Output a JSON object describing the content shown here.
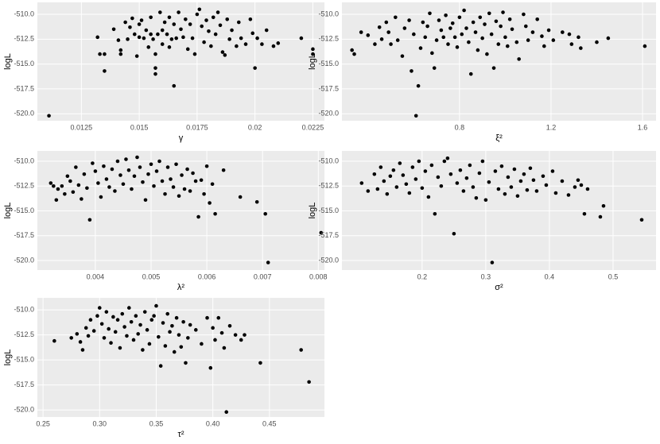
{
  "chart_data": [
    {
      "type": "scatter",
      "x_label": "γ",
      "y_label": "logL",
      "color": "#000000",
      "grid": true,
      "xlim": [
        0.0106,
        0.023
      ],
      "ylim": [
        -520.7,
        -508.8
      ],
      "xticks": [
        0.0125,
        0.015,
        0.0175,
        0.02,
        0.0225
      ],
      "xtick_labels_note": null,
      "yticks": [
        {
          "value": -510,
          "label": "-510.0"
        },
        -512.5,
        {
          "value": -515,
          "label": "-515.0"
        },
        -517.5,
        {
          "value": -520,
          "label": "-520.0"
        }
      ],
      "x": [
        0.0111,
        0.0132,
        0.0133,
        0.0135,
        0.0135,
        0.0139,
        0.0141,
        0.0142,
        0.0142,
        0.0144,
        0.0145,
        0.0146,
        0.0147,
        0.0148,
        0.0149,
        0.015,
        0.015,
        0.0151,
        0.0152,
        0.0153,
        0.0154,
        0.0155,
        0.0155,
        0.0156,
        0.0157,
        0.0157,
        0.0157,
        0.0158,
        0.0159,
        0.016,
        0.016,
        0.0161,
        0.0162,
        0.0163,
        0.0163,
        0.0164,
        0.0165,
        0.0165,
        0.0166,
        0.0167,
        0.0168,
        0.0169,
        0.017,
        0.0171,
        0.0172,
        0.0173,
        0.0174,
        0.0175,
        0.0176,
        0.0177,
        0.0178,
        0.0179,
        0.018,
        0.0181,
        0.0182,
        0.0183,
        0.0184,
        0.0185,
        0.0186,
        0.0187,
        0.0188,
        0.0189,
        0.019,
        0.0192,
        0.0193,
        0.0194,
        0.0196,
        0.0198,
        0.0199,
        0.02,
        0.0201,
        0.0203,
        0.0205,
        0.0208,
        0.021,
        0.022,
        0.0225,
        0.0225
      ],
      "y": [
        -520.2,
        -512.3,
        -514,
        -514,
        -515.7,
        -511.5,
        -512.6,
        -513.6,
        -514,
        -510.8,
        -512.5,
        -511.3,
        -510.4,
        -512,
        -514.2,
        -511,
        -512.3,
        -510.6,
        -512.4,
        -511.6,
        -513.3,
        -512,
        -510.3,
        -512.5,
        -514,
        -515.4,
        -516,
        -512,
        -509.8,
        -511.6,
        -513,
        -510.8,
        -512,
        -510.3,
        -513.3,
        -512.5,
        -517.2,
        -511,
        -512.4,
        -509.8,
        -511.5,
        -512.3,
        -510.5,
        -513.5,
        -511,
        -512.4,
        -514,
        -510,
        -509.5,
        -511.2,
        -512.8,
        -510.6,
        -511.7,
        -513.2,
        -510.3,
        -512,
        -509.8,
        -511.1,
        -513.8,
        -514.1,
        -510.5,
        -512.5,
        -511.6,
        -513.2,
        -510.8,
        -512.4,
        -513,
        -510.5,
        -511.9,
        -515.4,
        -512.4,
        -513,
        -511.6,
        -513.2,
        -512.9,
        -512.4,
        -514,
        -513.5
      ]
    },
    {
      "type": "scatter",
      "x_label": "ξ²",
      "y_label": "logL",
      "color": "#000000",
      "grid": true,
      "xlim": [
        0.286,
        1.659
      ],
      "ylim": [
        -520.7,
        -508.8
      ],
      "xticks": [
        0.8,
        1.2,
        1.6
      ],
      "yticks": [
        {
          "value": -510,
          "label": "-510.0"
        },
        -512.5,
        {
          "value": -515,
          "label": "-515.0"
        },
        -517.5,
        {
          "value": -520,
          "label": "-520.0"
        }
      ],
      "x": [
        0.33,
        0.34,
        0.37,
        0.4,
        0.43,
        0.45,
        0.46,
        0.48,
        0.49,
        0.5,
        0.52,
        0.53,
        0.55,
        0.56,
        0.58,
        0.59,
        0.6,
        0.61,
        0.62,
        0.63,
        0.64,
        0.65,
        0.66,
        0.67,
        0.68,
        0.69,
        0.7,
        0.71,
        0.72,
        0.73,
        0.74,
        0.75,
        0.76,
        0.77,
        0.78,
        0.79,
        0.8,
        0.81,
        0.82,
        0.83,
        0.84,
        0.85,
        0.86,
        0.87,
        0.88,
        0.89,
        0.9,
        0.91,
        0.92,
        0.93,
        0.94,
        0.95,
        0.96,
        0.97,
        0.98,
        0.99,
        1.0,
        1.01,
        1.02,
        1.03,
        1.05,
        1.06,
        1.08,
        1.09,
        1.1,
        1.12,
        1.14,
        1.16,
        1.17,
        1.19,
        1.21,
        1.25,
        1.28,
        1.29,
        1.32,
        1.33,
        1.4,
        1.45,
        1.61
      ],
      "y": [
        -513.6,
        -514,
        -511.8,
        -512.1,
        -513,
        -511.3,
        -512.5,
        -510.8,
        -511.8,
        -513,
        -510.3,
        -512.6,
        -514.2,
        -511.4,
        -510.6,
        -515.7,
        -512,
        -520.2,
        -517.2,
        -513.4,
        -510.8,
        -512.3,
        -511.2,
        -509.9,
        -513.9,
        -515.4,
        -512.6,
        -510.6,
        -511.6,
        -512.3,
        -510.1,
        -513,
        -511.4,
        -510.9,
        -512.3,
        -513.3,
        -510.3,
        -512,
        -509.6,
        -511.4,
        -512.8,
        -516,
        -510.8,
        -511.8,
        -513.6,
        -510.3,
        -512.4,
        -511,
        -514,
        -509.9,
        -512,
        -515.4,
        -510.7,
        -513,
        -511.2,
        -509.8,
        -512.3,
        -513.2,
        -510.5,
        -511.5,
        -512.8,
        -514.5,
        -510,
        -511.2,
        -512.6,
        -511.8,
        -510.5,
        -512.2,
        -513.2,
        -511.6,
        -512.6,
        -511.8,
        -512,
        -513,
        -512.3,
        -513.4,
        -512.8,
        -512.4,
        -513.2
      ]
    },
    {
      "type": "scatter",
      "x_label": "λ²",
      "y_label": "logL",
      "color": "#000000",
      "grid": true,
      "xlim": [
        0.00296,
        0.00811
      ],
      "ylim": [
        -520.96,
        -508.96
      ],
      "xticks": [
        0.004,
        0.005,
        0.006,
        0.007,
        0.008
      ],
      "yticks": [
        {
          "value": -510,
          "label": "-510.0"
        },
        -512.5,
        {
          "value": -515,
          "label": "-515.0"
        },
        -517.5,
        {
          "value": -520,
          "label": "-520.0"
        }
      ],
      "x": [
        0.0032,
        0.00325,
        0.0033,
        0.00333,
        0.0034,
        0.00345,
        0.0035,
        0.00355,
        0.0036,
        0.00365,
        0.0037,
        0.00375,
        0.0038,
        0.00385,
        0.0039,
        0.00395,
        0.004,
        0.00405,
        0.0041,
        0.00415,
        0.0042,
        0.00425,
        0.0043,
        0.00435,
        0.0044,
        0.00445,
        0.0045,
        0.00455,
        0.0046,
        0.00465,
        0.0047,
        0.00475,
        0.0048,
        0.00485,
        0.0049,
        0.00495,
        0.005,
        0.00505,
        0.0051,
        0.00515,
        0.0052,
        0.00525,
        0.0053,
        0.00535,
        0.0054,
        0.00545,
        0.0055,
        0.00555,
        0.0056,
        0.00565,
        0.0057,
        0.00575,
        0.0058,
        0.00585,
        0.0059,
        0.00595,
        0.006,
        0.00605,
        0.0061,
        0.00615,
        0.0063,
        0.0066,
        0.0069,
        0.00705,
        0.0071,
        0.00805
      ],
      "y": [
        -512.2,
        -512.5,
        -513.9,
        -512.8,
        -512.5,
        -513.3,
        -511.5,
        -512,
        -513.1,
        -510.6,
        -512.4,
        -513.8,
        -511.3,
        -512.7,
        -515.9,
        -510.2,
        -511,
        -512.2,
        -513.6,
        -510.5,
        -511.8,
        -512.6,
        -510.8,
        -513,
        -510,
        -511.4,
        -512.3,
        -509.8,
        -510.9,
        -512.8,
        -511.5,
        -509.6,
        -510.6,
        -512.1,
        -513.9,
        -511.3,
        -510.3,
        -512.5,
        -511,
        -510,
        -512,
        -513.3,
        -510.6,
        -511.8,
        -512.6,
        -510.3,
        -513.5,
        -511.4,
        -512.8,
        -510.8,
        -513,
        -511.2,
        -512,
        -515.6,
        -511.9,
        -513.3,
        -510.5,
        -514.2,
        -512.3,
        -515.3,
        -510.9,
        -513.6,
        -514.1,
        -515.3,
        -520.2,
        -517.2
      ]
    },
    {
      "type": "scatter",
      "x_label": "σ²",
      "y_label": "logL",
      "color": "#000000",
      "grid": true,
      "xlim": [
        0.074,
        0.5675
      ],
      "ylim": [
        -520.96,
        -508.96
      ],
      "xticks": [
        0.2,
        0.3,
        0.4,
        0.5
      ],
      "yticks": [
        {
          "value": -510,
          "label": "-510.0"
        },
        -512.5,
        {
          "value": -515,
          "label": "-515.0"
        },
        -517.5,
        {
          "value": -520,
          "label": "-520.0"
        }
      ],
      "x": [
        0.105,
        0.115,
        0.125,
        0.13,
        0.135,
        0.14,
        0.145,
        0.15,
        0.155,
        0.16,
        0.165,
        0.17,
        0.175,
        0.18,
        0.185,
        0.19,
        0.195,
        0.2,
        0.205,
        0.21,
        0.215,
        0.22,
        0.225,
        0.23,
        0.235,
        0.24,
        0.245,
        0.25,
        0.255,
        0.26,
        0.265,
        0.27,
        0.275,
        0.28,
        0.285,
        0.29,
        0.295,
        0.3,
        0.305,
        0.31,
        0.315,
        0.32,
        0.325,
        0.33,
        0.335,
        0.34,
        0.345,
        0.35,
        0.355,
        0.36,
        0.365,
        0.37,
        0.375,
        0.38,
        0.39,
        0.395,
        0.405,
        0.41,
        0.42,
        0.43,
        0.44,
        0.445,
        0.45,
        0.455,
        0.46,
        0.48,
        0.485,
        0.545
      ],
      "y": [
        -512.2,
        -513,
        -511.3,
        -512.8,
        -510.6,
        -512,
        -513.3,
        -511.5,
        -510.9,
        -512.6,
        -510.2,
        -511.4,
        -512.3,
        -513.2,
        -510.6,
        -511.8,
        -510,
        -512.7,
        -511,
        -513.6,
        -510.4,
        -515.3,
        -511.6,
        -512.5,
        -510,
        -509.7,
        -511.3,
        -517.3,
        -512.2,
        -510.9,
        -513,
        -511.7,
        -510.4,
        -512.6,
        -513.7,
        -511.2,
        -510,
        -513.9,
        -512.1,
        -520.2,
        -511,
        -512.8,
        -510.5,
        -513.3,
        -511.6,
        -512.6,
        -510.8,
        -513.5,
        -512,
        -511.3,
        -512.9,
        -510.7,
        -511.9,
        -513,
        -511.5,
        -512.4,
        -511,
        -513.2,
        -512,
        -513.4,
        -512.6,
        -511.9,
        -512.4,
        -515.3,
        -512.8,
        -515.6,
        -514.5,
        -515.9
      ]
    },
    {
      "type": "scatter",
      "x_label": "τ²",
      "y_label": "logL",
      "color": "#000000",
      "grid": true,
      "xlim": [
        0.245,
        0.4986
      ],
      "ylim": [
        -520.7,
        -508.8
      ],
      "xticks": [
        0.25,
        {
          "value": 0.3,
          "label": "0.30"
        },
        0.35,
        {
          "value": 0.4,
          "label": "0.40"
        },
        0.45
      ],
      "yticks": [
        {
          "value": -510,
          "label": "-510.0"
        },
        -512.5,
        {
          "value": -515,
          "label": "-515.0"
        },
        -517.5,
        {
          "value": -520,
          "label": "-520.0"
        }
      ],
      "x": [
        0.26,
        0.275,
        0.28,
        0.283,
        0.285,
        0.288,
        0.29,
        0.292,
        0.295,
        0.298,
        0.3,
        0.302,
        0.304,
        0.306,
        0.308,
        0.31,
        0.312,
        0.314,
        0.316,
        0.318,
        0.32,
        0.322,
        0.324,
        0.326,
        0.328,
        0.33,
        0.332,
        0.334,
        0.336,
        0.338,
        0.34,
        0.342,
        0.344,
        0.346,
        0.348,
        0.35,
        0.352,
        0.354,
        0.356,
        0.358,
        0.36,
        0.362,
        0.364,
        0.366,
        0.368,
        0.37,
        0.372,
        0.374,
        0.376,
        0.378,
        0.38,
        0.385,
        0.39,
        0.395,
        0.398,
        0.4,
        0.402,
        0.405,
        0.408,
        0.41,
        0.412,
        0.415,
        0.42,
        0.425,
        0.428,
        0.442,
        0.478,
        0.485
      ],
      "y": [
        -513.1,
        -512.8,
        -512.4,
        -513.2,
        -514,
        -511.8,
        -512.6,
        -511,
        -512.1,
        -510.6,
        -509.8,
        -511.4,
        -512.8,
        -510.2,
        -511.9,
        -513.3,
        -510.7,
        -512.2,
        -511,
        -513.8,
        -510.4,
        -511.7,
        -512.6,
        -509.8,
        -511.2,
        -513,
        -510.6,
        -512.4,
        -511.5,
        -514,
        -510.2,
        -512,
        -513.4,
        -511,
        -510.6,
        -509.6,
        -512.7,
        -515.6,
        -511.3,
        -513.6,
        -510.4,
        -512.2,
        -511.6,
        -514.2,
        -510.8,
        -512.5,
        -513.7,
        -511.2,
        -515.3,
        -512.8,
        -511.5,
        -512,
        -513.4,
        -510.8,
        -515.8,
        -511.8,
        -513,
        -510.8,
        -512.3,
        -513.8,
        -520.2,
        -511.6,
        -512.5,
        -513,
        -512.5,
        -515.3,
        -514,
        -517.2
      ]
    }
  ]
}
